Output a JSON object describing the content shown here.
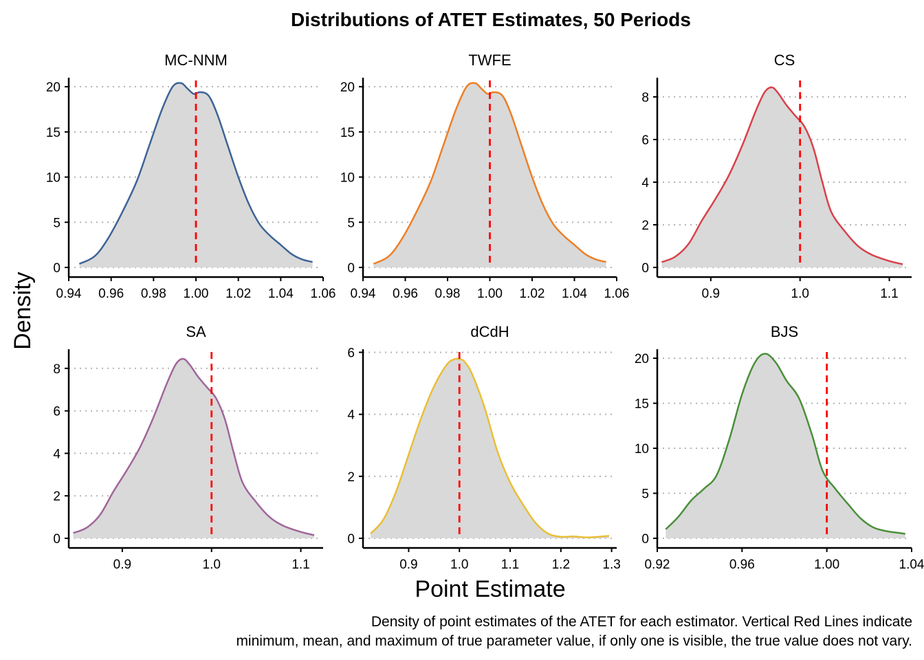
{
  "title": "Distributions of ATET Estimates, 50 Periods",
  "xlabel": "Point Estimate",
  "ylabel": "Density",
  "caption_lines": [
    "Density of point estimates of the ATET for each estimator. Vertical Red Lines indicate",
    "minimum, mean, and maximum of true parameter value, if only one is visible, the true value does not vary."
  ],
  "reference_line_color": "#ff0000",
  "fill_color": "#d9d9d9",
  "chart_data": [
    {
      "type": "area",
      "name": "MC-NNM",
      "color": "#3d6496",
      "xlim": [
        0.94,
        1.06
      ],
      "ylim": [
        0,
        21
      ],
      "x_ticks": [
        0.94,
        0.96,
        0.98,
        1.0,
        1.02,
        1.04,
        1.06
      ],
      "x_tick_labels": [
        "0.94",
        "0.96",
        "0.98",
        "1.00",
        "1.02",
        "1.04",
        "1.06"
      ],
      "y_ticks": [
        0,
        5,
        10,
        15,
        20
      ],
      "y_tick_labels": [
        "0",
        "5",
        "10",
        "15",
        "20"
      ],
      "true_value": 1.0,
      "x": [
        0.945,
        0.952,
        0.958,
        0.965,
        0.972,
        0.978,
        0.984,
        0.989,
        0.993,
        0.996,
        0.999,
        1.002,
        1.006,
        1.01,
        1.015,
        1.02,
        1.025,
        1.03,
        1.035,
        1.04,
        1.045,
        1.05,
        1.055
      ],
      "y": [
        0.4,
        1.2,
        3.0,
        6.0,
        9.5,
        13.5,
        17.5,
        20.0,
        20.4,
        19.8,
        19.2,
        19.4,
        19.0,
        17.0,
        13.5,
        10.0,
        7.0,
        4.8,
        3.5,
        2.5,
        1.5,
        0.9,
        0.6
      ]
    },
    {
      "type": "area",
      "name": "TWFE",
      "color": "#ee7f26",
      "xlim": [
        0.94,
        1.06
      ],
      "ylim": [
        0,
        21
      ],
      "x_ticks": [
        0.94,
        0.96,
        0.98,
        1.0,
        1.02,
        1.04,
        1.06
      ],
      "x_tick_labels": [
        "0.94",
        "0.96",
        "0.98",
        "1.00",
        "1.02",
        "1.04",
        "1.06"
      ],
      "y_ticks": [
        0,
        5,
        10,
        15,
        20
      ],
      "y_tick_labels": [
        "0",
        "5",
        "10",
        "15",
        "20"
      ],
      "true_value": 1.0,
      "x": [
        0.945,
        0.952,
        0.958,
        0.965,
        0.972,
        0.978,
        0.984,
        0.989,
        0.993,
        0.996,
        0.999,
        1.002,
        1.006,
        1.01,
        1.015,
        1.02,
        1.025,
        1.03,
        1.035,
        1.04,
        1.045,
        1.05,
        1.055
      ],
      "y": [
        0.4,
        1.2,
        3.0,
        6.0,
        9.5,
        13.5,
        17.5,
        20.0,
        20.4,
        19.8,
        19.2,
        19.4,
        19.0,
        17.0,
        13.5,
        10.0,
        7.0,
        4.8,
        3.5,
        2.5,
        1.5,
        0.9,
        0.6
      ]
    },
    {
      "type": "area",
      "name": "CS",
      "color": "#d9414b",
      "xlim": [
        0.84,
        1.125
      ],
      "ylim": [
        0,
        8.9
      ],
      "x_ticks": [
        0.9,
        1.0,
        1.1
      ],
      "x_tick_labels": [
        "0.9",
        "1.0",
        "1.1"
      ],
      "y_ticks": [
        0,
        2,
        4,
        6,
        8
      ],
      "y_tick_labels": [
        "0",
        "2",
        "4",
        "6",
        "8"
      ],
      "true_value": 1.0,
      "x": [
        0.845,
        0.86,
        0.875,
        0.89,
        0.905,
        0.92,
        0.935,
        0.95,
        0.96,
        0.968,
        0.975,
        0.985,
        0.995,
        1.005,
        1.015,
        1.025,
        1.035,
        1.05,
        1.065,
        1.08,
        1.1,
        1.115
      ],
      "y": [
        0.25,
        0.5,
        1.1,
        2.2,
        3.2,
        4.3,
        5.7,
        7.3,
        8.2,
        8.45,
        8.2,
        7.6,
        7.1,
        6.6,
        5.6,
        4.0,
        2.6,
        1.7,
        1.0,
        0.6,
        0.3,
        0.15
      ]
    },
    {
      "type": "area",
      "name": "SA",
      "color": "#a0669b",
      "xlim": [
        0.84,
        1.125
      ],
      "ylim": [
        0,
        8.9
      ],
      "x_ticks": [
        0.9,
        1.0,
        1.1
      ],
      "x_tick_labels": [
        "0.9",
        "1.0",
        "1.1"
      ],
      "y_ticks": [
        0,
        2,
        4,
        6,
        8
      ],
      "y_tick_labels": [
        "0",
        "2",
        "4",
        "6",
        "8"
      ],
      "true_value": 1.0,
      "x": [
        0.845,
        0.86,
        0.875,
        0.89,
        0.905,
        0.92,
        0.935,
        0.95,
        0.96,
        0.968,
        0.975,
        0.985,
        0.995,
        1.005,
        1.015,
        1.025,
        1.035,
        1.05,
        1.065,
        1.08,
        1.1,
        1.115
      ],
      "y": [
        0.25,
        0.5,
        1.1,
        2.2,
        3.2,
        4.3,
        5.7,
        7.3,
        8.2,
        8.45,
        8.2,
        7.6,
        7.1,
        6.6,
        5.6,
        4.0,
        2.6,
        1.7,
        1.0,
        0.6,
        0.3,
        0.15
      ]
    },
    {
      "type": "area",
      "name": "dCdH",
      "color": "#e9bf38",
      "xlim": [
        0.81,
        1.31
      ],
      "ylim": [
        0,
        6.1
      ],
      "x_ticks": [
        0.9,
        1.0,
        1.1,
        1.2,
        1.3
      ],
      "x_tick_labels": [
        "0.9",
        "1.0",
        "1.1",
        "1.2",
        "1.3"
      ],
      "y_ticks": [
        0,
        2,
        4,
        6
      ],
      "y_tick_labels": [
        "0",
        "2",
        "4",
        "6"
      ],
      "true_value": 1.0,
      "x": [
        0.825,
        0.85,
        0.875,
        0.9,
        0.925,
        0.95,
        0.975,
        0.99,
        1.0,
        1.01,
        1.025,
        1.05,
        1.075,
        1.1,
        1.125,
        1.15,
        1.175,
        1.2,
        1.225,
        1.25,
        1.275,
        1.295
      ],
      "y": [
        0.15,
        0.6,
        1.5,
        2.7,
        3.9,
        4.9,
        5.6,
        5.78,
        5.78,
        5.7,
        5.3,
        4.2,
        2.8,
        1.8,
        1.1,
        0.5,
        0.15,
        0.05,
        0.06,
        0.03,
        0.05,
        0.08
      ]
    },
    {
      "type": "area",
      "name": "BJS",
      "color": "#4a8f3a",
      "xlim": [
        0.92,
        1.04
      ],
      "ylim": [
        0,
        21
      ],
      "x_ticks": [
        0.92,
        0.96,
        1.0,
        1.04
      ],
      "x_tick_labels": [
        "0.92",
        "0.96",
        "1.00",
        "1.04"
      ],
      "y_ticks": [
        0,
        5,
        10,
        15,
        20
      ],
      "y_tick_labels": [
        "0",
        "5",
        "10",
        "15",
        "20"
      ],
      "true_value": 1.0,
      "x": [
        0.924,
        0.93,
        0.936,
        0.942,
        0.948,
        0.954,
        0.96,
        0.966,
        0.971,
        0.976,
        0.981,
        0.987,
        0.993,
        0.998,
        1.004,
        1.01,
        1.016,
        1.022,
        1.028,
        1.034,
        1.037
      ],
      "y": [
        1.0,
        2.4,
        4.2,
        5.5,
        7.0,
        11.0,
        16.0,
        19.5,
        20.5,
        19.5,
        17.5,
        15.5,
        11.5,
        7.5,
        5.5,
        3.8,
        2.2,
        1.2,
        0.8,
        0.6,
        0.5
      ]
    }
  ]
}
